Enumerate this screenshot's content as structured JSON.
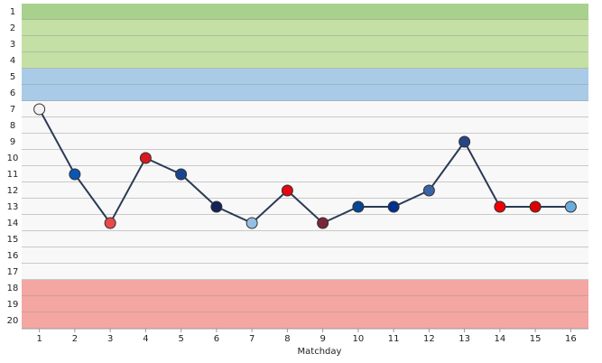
{
  "chart_data": {
    "type": "line",
    "x_label": "Matchday",
    "x": [
      1,
      2,
      3,
      4,
      5,
      6,
      7,
      8,
      9,
      10,
      11,
      12,
      13,
      14,
      15,
      16
    ],
    "series": [
      {
        "color": "#2b3a55",
        "values": [
          7,
          11,
          14,
          10,
          11,
          13,
          14,
          12,
          14,
          13,
          13,
          12,
          9,
          13,
          13,
          13
        ],
        "marker_colors": [
          "#f2f2f2",
          "#0a57b3",
          "#e84a4a",
          "#d71920",
          "#1b458f",
          "#132257",
          "#95bfe5",
          "#e30613",
          "#7a263a",
          "#034694",
          "#003090",
          "#3a64a3",
          "#274488",
          "#ef0107",
          "#dd0000",
          "#6cabdd"
        ]
      }
    ],
    "xlim": [
      0.5,
      16.5
    ],
    "xticks": [
      1,
      2,
      3,
      4,
      5,
      6,
      7,
      8,
      9,
      10,
      11,
      12,
      13,
      14,
      15,
      16
    ],
    "ylim": [
      20.5,
      0.5
    ],
    "yticks": [
      1,
      2,
      3,
      4,
      5,
      6,
      7,
      8,
      9,
      10,
      11,
      12,
      13,
      14,
      15,
      16,
      17,
      18,
      19,
      20
    ],
    "zones": [
      {
        "range": [
          1,
          1
        ],
        "color": "#a9d18e"
      },
      {
        "range": [
          2,
          4
        ],
        "color": "#c5e0a5"
      },
      {
        "range": [
          5,
          6
        ],
        "color": "#a9cbe8"
      },
      {
        "range": [
          7,
          17
        ],
        "color": "#f8f8f8"
      },
      {
        "range": [
          18,
          20
        ],
        "color": "#f4a7a2"
      }
    ]
  }
}
